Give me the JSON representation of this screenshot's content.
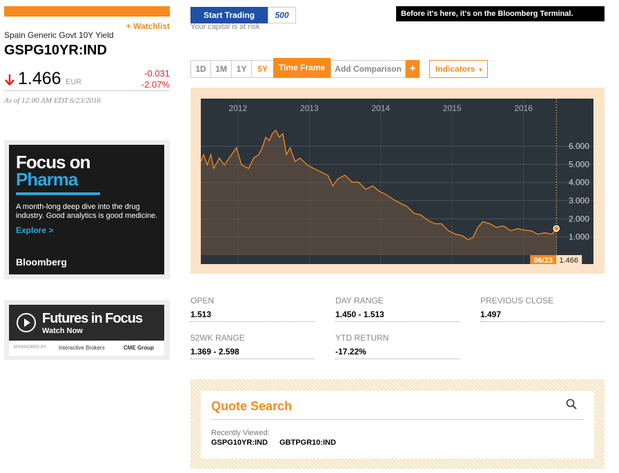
{
  "header": {
    "watchlist": "+ Watchlist",
    "security_name": "Spain Generic Govt 10Y Yield",
    "ticker": "GSPG10YR:IND"
  },
  "quote": {
    "price": "1.466",
    "currency": "EUR",
    "change": "-0.031",
    "change_pct": "-2.07%",
    "as_of": "As of 12:00 AM EDT 6/23/2016"
  },
  "top_bar": {
    "start_trading": "Start Trading",
    "badge": "500",
    "risk_note": "Your capital is at risk",
    "terminal_banner": "Before it's here, it's on the Bloomberg Terminal."
  },
  "controls": {
    "ranges": [
      "1D",
      "1M",
      "1Y",
      "5Y"
    ],
    "time_frame": "Time Frame",
    "add_comparison": "Add Comparison",
    "plus": "+",
    "indicators": "Indicators"
  },
  "ad_pharma": {
    "title_line1": "Focus on",
    "title_line2": "Pharma",
    "description": "A month-long deep dive into the drug industry. Good analytics is good medicine.",
    "cta": "Explore >",
    "brand": "Bloomberg"
  },
  "ad_futures": {
    "title": "Futures in Focus",
    "cta": "Watch Now",
    "sponsored_by": "SPONSORED BY",
    "sponsor1": "Interactive Brokers",
    "sponsor2": "CME Group"
  },
  "stats": [
    {
      "label": "OPEN",
      "value": "1.513"
    },
    {
      "label": "DAY RANGE",
      "value": "1.450 - 1.513"
    },
    {
      "label": "PREVIOUS CLOSE",
      "value": "1.497"
    },
    {
      "label": "52WK RANGE",
      "value": "1.369 - 2.598"
    },
    {
      "label": "YTD RETURN",
      "value": "-17.22%"
    }
  ],
  "quote_search": {
    "title": "Quote Search",
    "recently_viewed": "Recently Viewed:",
    "items": [
      "GSPG10YR:IND",
      "GBTPGR10:IND"
    ]
  },
  "chart_data": {
    "type": "line",
    "color": "#f68b1f",
    "crosshair_date": "06/23",
    "x": [
      2011.48,
      2011.52,
      2011.57,
      2011.62,
      2011.66,
      2011.74,
      2011.81,
      2011.91,
      2011.98,
      2012.05,
      2012.15,
      2012.22,
      2012.29,
      2012.34,
      2012.39,
      2012.44,
      2012.48,
      2012.53,
      2012.58,
      2012.63,
      2012.68,
      2012.73,
      2012.8,
      2012.87,
      2012.97,
      2013.06,
      2013.16,
      2013.26,
      2013.33,
      2013.4,
      2013.5,
      2013.6,
      2013.69,
      2013.79,
      2013.89,
      2013.98,
      2014.08,
      2014.18,
      2014.27,
      2014.37,
      2014.47,
      2014.56,
      2014.66,
      2014.76,
      2014.85,
      2014.95,
      2015.05,
      2015.14,
      2015.22,
      2015.29,
      2015.36,
      2015.43,
      2015.53,
      2015.62,
      2015.72,
      2015.82,
      2015.92,
      2016.01,
      2016.11,
      2016.2,
      2016.3,
      2016.4,
      2016.46
    ],
    "values": [
      5.16,
      5.54,
      4.97,
      5.54,
      4.78,
      5.35,
      4.97,
      5.54,
      5.92,
      4.97,
      4.78,
      5.35,
      5.54,
      5.92,
      6.5,
      6.31,
      6.69,
      6.88,
      6.5,
      6.69,
      5.54,
      5.92,
      5.16,
      5.35,
      4.97,
      4.78,
      4.59,
      4.4,
      3.82,
      4.21,
      4.4,
      4.02,
      4.02,
      3.63,
      3.82,
      3.52,
      3.33,
      3.06,
      2.87,
      2.68,
      2.3,
      2.22,
      1.92,
      1.73,
      1.73,
      1.34,
      1.15,
      1.08,
      0.85,
      0.96,
      1.53,
      1.84,
      1.73,
      1.53,
      1.61,
      1.34,
      1.46,
      1.38,
      1.34,
      1.15,
      1.23,
      1.15,
      1.466
    ],
    "xlim": [
      2011.48,
      2016.98
    ],
    "xticks": [
      2012,
      2013,
      2014,
      2015,
      2016
    ],
    "ylim": [
      0,
      7.6
    ],
    "yticks": [
      {
        "value": 1,
        "label": "1.000"
      },
      {
        "value": 2,
        "label": "2.000"
      },
      {
        "value": 3,
        "label": "3.000"
      },
      {
        "value": 4,
        "label": "4.000"
      },
      {
        "value": 5,
        "label": "5.000"
      },
      {
        "value": 6,
        "label": "6.000"
      }
    ],
    "grid": true
  }
}
